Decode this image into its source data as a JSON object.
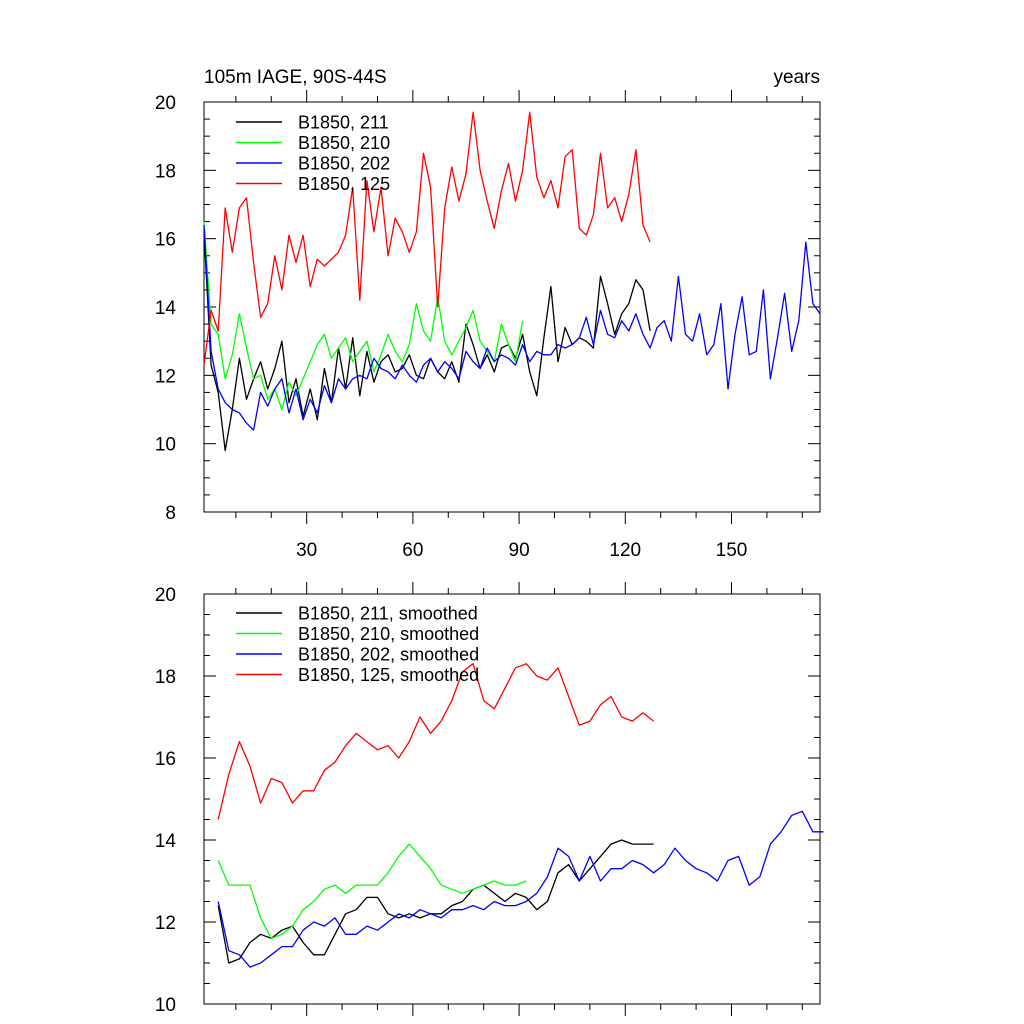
{
  "header": {
    "title_left": "105m IAGE, 90S-44S",
    "title_right": "years"
  },
  "chart_data": [
    {
      "type": "line",
      "xlim": [
        1,
        175
      ],
      "ylim": [
        8,
        20
      ],
      "xticks": [
        30,
        60,
        90,
        120,
        150
      ],
      "yticks": [
        8,
        10,
        12,
        14,
        16,
        18,
        20
      ],
      "legend_position": "top-left",
      "series": [
        {
          "name": "B1850, 211",
          "color": "#000000",
          "x": [
            1,
            3,
            5,
            7,
            9,
            11,
            13,
            15,
            17,
            19,
            21,
            23,
            25,
            27,
            29,
            31,
            33,
            35,
            37,
            39,
            41,
            43,
            45,
            47,
            49,
            51,
            53,
            55,
            57,
            59,
            61,
            63,
            65,
            67,
            69,
            71,
            73,
            75,
            77,
            79,
            81,
            83,
            85,
            87,
            89,
            91,
            93,
            95,
            97,
            99,
            101,
            103,
            105,
            107,
            109,
            111,
            113,
            115,
            117,
            119,
            121,
            123,
            125,
            127
          ],
          "y": [
            16.2,
            12.3,
            11.5,
            9.8,
            11.0,
            12.5,
            11.3,
            11.9,
            12.4,
            11.6,
            12.2,
            13.0,
            11.2,
            11.9,
            10.8,
            11.6,
            10.7,
            12.2,
            11.2,
            12.8,
            11.6,
            13.1,
            11.4,
            12.7,
            11.8,
            12.4,
            12.6,
            12.1,
            12.2,
            12.6,
            12.0,
            11.9,
            12.5,
            12.1,
            11.9,
            12.4,
            11.8,
            13.5,
            12.9,
            12.2,
            12.6,
            12.1,
            12.8,
            12.9,
            12.5,
            13.2,
            12.1,
            11.4,
            13.1,
            14.6,
            12.4,
            13.4,
            12.9,
            13.1,
            13.0,
            12.8,
            14.9,
            14.1,
            13.2,
            13.8,
            14.1,
            14.8,
            14.5,
            13.3
          ]
        },
        {
          "name": "B1850, 210",
          "color": "#00ff00",
          "x": [
            1,
            3,
            5,
            7,
            9,
            11,
            13,
            15,
            17,
            19,
            21,
            23,
            25,
            27,
            29,
            31,
            33,
            35,
            37,
            39,
            41,
            43,
            45,
            47,
            49,
            51,
            53,
            55,
            57,
            59,
            61,
            63,
            65,
            67,
            69,
            71,
            73,
            75,
            77,
            79,
            81,
            83,
            85,
            87,
            89,
            91
          ],
          "y": [
            16.5,
            13.5,
            13.2,
            11.9,
            12.6,
            13.8,
            12.8,
            11.9,
            12.0,
            11.3,
            11.6,
            11.0,
            11.8,
            11.4,
            11.9,
            12.4,
            12.9,
            13.2,
            12.5,
            12.8,
            13.1,
            12.4,
            12.7,
            13.0,
            12.1,
            12.6,
            13.2,
            12.7,
            12.4,
            12.9,
            14.1,
            13.3,
            13.0,
            14.3,
            13.0,
            12.6,
            13.0,
            13.4,
            13.9,
            13.0,
            12.7,
            12.4,
            13.5,
            12.9,
            12.4,
            13.6
          ]
        },
        {
          "name": "B1850, 202",
          "color": "#0000ff",
          "x": [
            1,
            3,
            5,
            7,
            9,
            11,
            13,
            15,
            17,
            19,
            21,
            23,
            25,
            27,
            29,
            31,
            33,
            35,
            37,
            39,
            41,
            43,
            45,
            47,
            49,
            51,
            53,
            55,
            57,
            59,
            61,
            63,
            65,
            67,
            69,
            71,
            73,
            75,
            77,
            79,
            81,
            83,
            85,
            87,
            89,
            91,
            93,
            95,
            97,
            99,
            101,
            103,
            105,
            107,
            109,
            111,
            113,
            115,
            117,
            119,
            121,
            123,
            125,
            127,
            129,
            131,
            133,
            135,
            137,
            139,
            141,
            143,
            145,
            147,
            149,
            151,
            153,
            155,
            157,
            159,
            161,
            163,
            165,
            167,
            169,
            171,
            173,
            175
          ],
          "y": [
            16.4,
            12.7,
            11.6,
            11.2,
            11.0,
            10.9,
            10.6,
            10.4,
            11.5,
            11.1,
            11.6,
            11.9,
            10.9,
            11.6,
            10.7,
            11.3,
            10.9,
            11.7,
            11.2,
            11.9,
            11.6,
            11.9,
            12.0,
            11.9,
            12.5,
            12.2,
            12.1,
            11.9,
            12.3,
            12.0,
            11.8,
            12.3,
            12.5,
            12.1,
            12.4,
            12.2,
            11.9,
            12.7,
            12.4,
            12.2,
            12.8,
            12.4,
            12.6,
            12.5,
            12.3,
            12.9,
            12.4,
            12.7,
            12.6,
            12.6,
            12.9,
            12.8,
            12.9,
            13.1,
            13.7,
            12.9,
            13.9,
            13.2,
            13.1,
            13.6,
            13.3,
            13.8,
            13.2,
            12.8,
            13.4,
            13.6,
            13.0,
            14.9,
            13.2,
            13.0,
            13.8,
            12.6,
            12.9,
            14.1,
            11.6,
            13.2,
            14.3,
            12.6,
            12.7,
            14.5,
            11.9,
            13.1,
            14.4,
            12.7,
            13.6,
            15.9,
            14.1,
            13.8
          ]
        },
        {
          "name": "B1850, 125",
          "color": "#ff0000",
          "x": [
            1,
            3,
            5,
            7,
            9,
            11,
            13,
            15,
            17,
            19,
            21,
            23,
            25,
            27,
            29,
            31,
            33,
            35,
            37,
            39,
            41,
            43,
            45,
            47,
            49,
            51,
            53,
            55,
            57,
            59,
            61,
            63,
            65,
            67,
            69,
            71,
            73,
            75,
            77,
            79,
            81,
            83,
            85,
            87,
            89,
            91,
            93,
            95,
            97,
            99,
            101,
            103,
            105,
            107,
            109,
            111,
            113,
            115,
            117,
            119,
            121,
            123,
            125,
            127
          ],
          "y": [
            12.3,
            13.9,
            13.3,
            16.9,
            15.6,
            16.9,
            17.2,
            15.3,
            13.7,
            14.1,
            15.5,
            14.5,
            16.1,
            15.3,
            16.1,
            14.6,
            15.4,
            15.2,
            15.4,
            15.6,
            16.1,
            17.5,
            14.2,
            17.7,
            16.2,
            17.5,
            15.5,
            16.6,
            16.2,
            15.6,
            16.2,
            18.5,
            17.5,
            14.0,
            16.9,
            18.1,
            17.1,
            17.9,
            19.7,
            18.0,
            17.1,
            16.3,
            17.4,
            18.2,
            17.1,
            18.0,
            19.7,
            17.8,
            17.2,
            17.7,
            16.9,
            18.4,
            18.6,
            16.3,
            16.1,
            16.7,
            18.5,
            16.9,
            17.2,
            16.5,
            17.3,
            18.6,
            16.4,
            15.9
          ]
        }
      ]
    },
    {
      "type": "line",
      "xlim": [
        1,
        175
      ],
      "ylim": [
        10,
        20
      ],
      "xticks": [
        30,
        60,
        90,
        120,
        150
      ],
      "yticks": [
        10,
        12,
        14,
        16,
        18,
        20
      ],
      "legend_position": "top-left",
      "series": [
        {
          "name": "B1850, 211, smoothed",
          "color": "#000000",
          "x": [
            5,
            8,
            11,
            14,
            17,
            20,
            23,
            26,
            29,
            32,
            35,
            38,
            41,
            44,
            47,
            50,
            53,
            56,
            59,
            62,
            65,
            68,
            71,
            74,
            77,
            80,
            83,
            86,
            89,
            92,
            95,
            98,
            101,
            104,
            107,
            110,
            113,
            116,
            119,
            122,
            125,
            128
          ],
          "y": [
            12.4,
            11.0,
            11.1,
            11.5,
            11.7,
            11.6,
            11.8,
            11.9,
            11.5,
            11.2,
            11.2,
            11.7,
            12.2,
            12.3,
            12.6,
            12.6,
            12.2,
            12.1,
            12.2,
            12.1,
            12.2,
            12.2,
            12.4,
            12.5,
            12.8,
            12.9,
            12.7,
            12.5,
            12.7,
            12.6,
            12.3,
            12.5,
            13.2,
            13.4,
            13.0,
            13.3,
            13.6,
            13.9,
            14.0,
            13.9,
            13.9,
            13.9
          ]
        },
        {
          "name": "B1850, 210, smoothed",
          "color": "#00ff00",
          "x": [
            5,
            8,
            11,
            14,
            17,
            20,
            23,
            26,
            29,
            32,
            35,
            38,
            41,
            44,
            47,
            50,
            53,
            56,
            59,
            62,
            65,
            68,
            71,
            74,
            77,
            80,
            83,
            86,
            89,
            92
          ],
          "y": [
            13.5,
            12.9,
            12.9,
            12.9,
            12.1,
            11.6,
            11.7,
            11.9,
            12.3,
            12.5,
            12.8,
            12.9,
            12.7,
            12.9,
            12.9,
            12.9,
            13.2,
            13.6,
            13.9,
            13.6,
            13.3,
            12.9,
            12.8,
            12.7,
            12.8,
            12.9,
            13.0,
            12.9,
            12.9,
            13.0
          ]
        },
        {
          "name": "B1850, 202, smoothed",
          "color": "#0000ff",
          "x": [
            5,
            8,
            11,
            14,
            17,
            20,
            23,
            26,
            29,
            32,
            35,
            38,
            41,
            44,
            47,
            50,
            53,
            56,
            59,
            62,
            65,
            68,
            71,
            74,
            77,
            80,
            83,
            86,
            89,
            92,
            95,
            98,
            101,
            104,
            107,
            110,
            113,
            116,
            119,
            122,
            125,
            128,
            131,
            134,
            137,
            140,
            143,
            146,
            149,
            152,
            155,
            158,
            161,
            164,
            167,
            170,
            173,
            176
          ],
          "y": [
            12.5,
            11.3,
            11.2,
            10.9,
            11.0,
            11.2,
            11.4,
            11.4,
            11.8,
            12.0,
            11.9,
            12.1,
            11.7,
            11.7,
            11.9,
            11.8,
            12.0,
            12.2,
            12.1,
            12.3,
            12.2,
            12.1,
            12.3,
            12.3,
            12.4,
            12.3,
            12.5,
            12.4,
            12.4,
            12.5,
            12.7,
            13.1,
            13.8,
            13.6,
            13.0,
            13.6,
            13.0,
            13.3,
            13.3,
            13.5,
            13.4,
            13.2,
            13.4,
            13.8,
            13.5,
            13.3,
            13.2,
            13.0,
            13.5,
            13.6,
            12.9,
            13.1,
            13.9,
            14.2,
            14.6,
            14.7,
            14.2,
            14.2
          ]
        },
        {
          "name": "B1850, 125, smoothed",
          "color": "#ff0000",
          "x": [
            5,
            8,
            11,
            14,
            17,
            20,
            23,
            26,
            29,
            32,
            35,
            38,
            41,
            44,
            47,
            50,
            53,
            56,
            59,
            62,
            65,
            68,
            71,
            74,
            77,
            80,
            83,
            86,
            89,
            92,
            95,
            98,
            101,
            104,
            107,
            110,
            113,
            116,
            119,
            122,
            125,
            128
          ],
          "y": [
            14.5,
            15.6,
            16.4,
            15.8,
            14.9,
            15.5,
            15.4,
            14.9,
            15.2,
            15.2,
            15.7,
            15.9,
            16.3,
            16.6,
            16.4,
            16.2,
            16.3,
            16.0,
            16.4,
            17.0,
            16.6,
            16.9,
            17.4,
            18.1,
            18.3,
            17.4,
            17.2,
            17.7,
            18.2,
            18.3,
            18.0,
            17.9,
            18.2,
            17.5,
            16.8,
            16.9,
            17.3,
            17.5,
            17.0,
            16.9,
            17.1,
            16.9
          ]
        }
      ]
    }
  ]
}
